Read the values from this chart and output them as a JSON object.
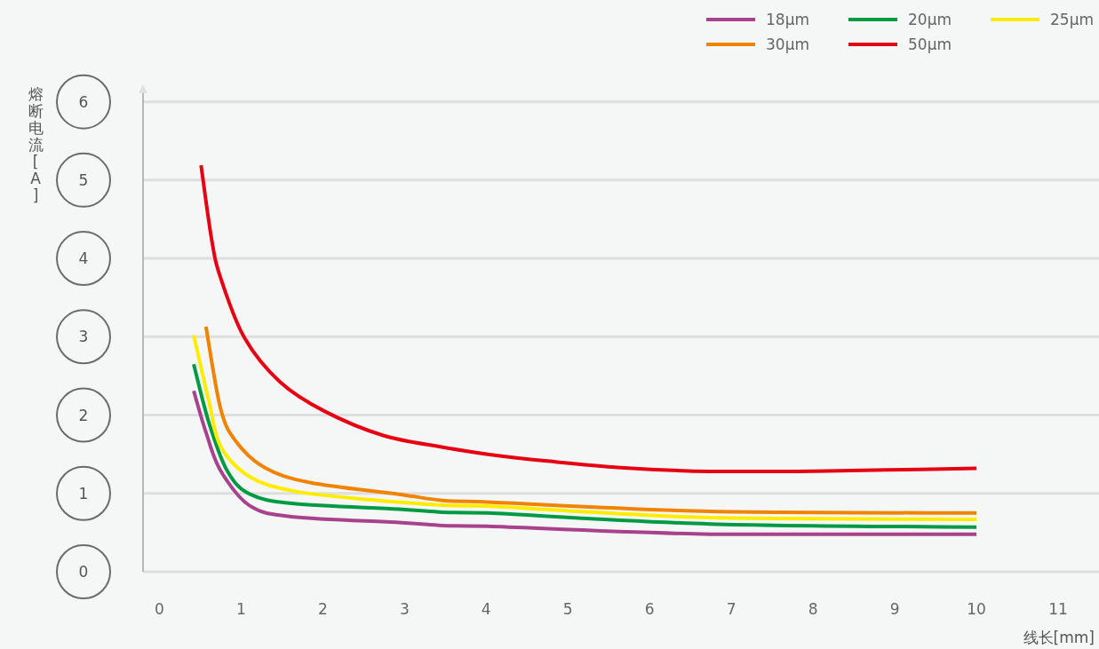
{
  "chart_data": {
    "type": "line",
    "xlabel": "线长[mm]",
    "ylabel": "熔断电流[A]",
    "xlim": [
      -0.2,
      11.5
    ],
    "ylim": [
      0,
      6.2
    ],
    "xticks": [
      0,
      1,
      2,
      3,
      4,
      5,
      6,
      7,
      8,
      9,
      10,
      11
    ],
    "yticks": [
      0,
      1,
      2,
      3,
      4,
      5,
      6
    ],
    "grid": "y",
    "legend": "top right",
    "line_style": "solid",
    "marker": "none",
    "series": [
      {
        "name": "18μm",
        "color": "#a8428c",
        "x": [
          0.42,
          0.57,
          0.75,
          1.11,
          1.65,
          2.93,
          3.47,
          4.02,
          6.74,
          10
        ],
        "values": [
          2.31,
          1.78,
          1.29,
          0.84,
          0.7,
          0.63,
          0.59,
          0.58,
          0.48,
          0.48
        ]
      },
      {
        "name": "20μm",
        "color": "#009a44",
        "x": [
          0.42,
          0.61,
          0.83,
          1.11,
          1.65,
          2.93,
          3.47,
          4.02,
          6.74,
          10
        ],
        "values": [
          2.65,
          1.89,
          1.29,
          0.99,
          0.87,
          0.8,
          0.76,
          0.75,
          0.61,
          0.57
        ]
      },
      {
        "name": "25μm",
        "color": "#ffec00",
        "x": [
          0.42,
          0.61,
          0.75,
          1.11,
          1.65,
          2.57,
          3.47,
          4.02,
          6.74,
          10
        ],
        "values": [
          3.02,
          2.16,
          1.6,
          1.21,
          1.03,
          0.92,
          0.85,
          0.84,
          0.69,
          0.67
        ]
      },
      {
        "name": "30μm",
        "color": "#f08300",
        "x": [
          0.57,
          0.75,
          0.94,
          1.29,
          1.84,
          2.93,
          3.47,
          4.02,
          6.74,
          10
        ],
        "values": [
          3.13,
          2.08,
          1.66,
          1.33,
          1.14,
          0.99,
          0.91,
          0.89,
          0.77,
          0.75
        ]
      },
      {
        "name": "50μm",
        "color": "#e60012",
        "x": [
          0.51,
          0.64,
          0.75,
          1.04,
          1.48,
          2.02,
          2.74,
          3.47,
          4.02,
          4.78,
          5.65,
          6.74,
          7.82,
          8.9,
          10
        ],
        "values": [
          5.19,
          4.24,
          3.75,
          2.99,
          2.42,
          2.05,
          1.74,
          1.59,
          1.5,
          1.41,
          1.33,
          1.28,
          1.28,
          1.3,
          1.32
        ]
      }
    ]
  }
}
